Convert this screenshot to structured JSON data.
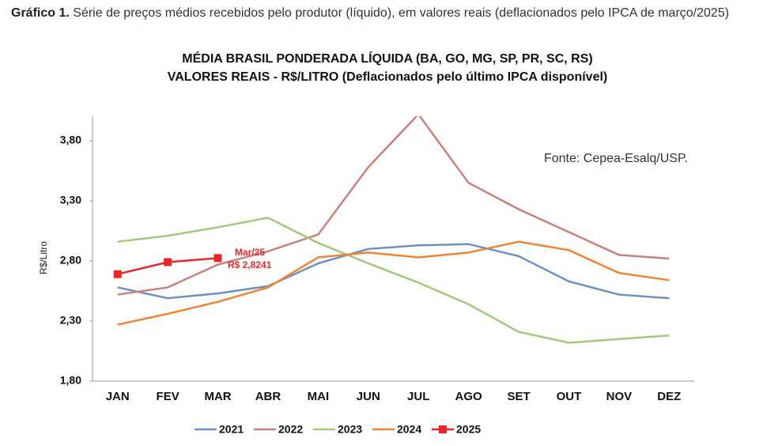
{
  "caption": {
    "label": "Gráfico 1.",
    "text": "Série de preços médios recebidos pelo produtor (líquido), em valores reais (deflacionados pelo IPCA de março/2025)"
  },
  "chart_data": {
    "type": "line",
    "title": "MÉDIA BRASIL PONDERADA LÍQUIDA (BA, GO, MG, SP, PR, SC, RS)",
    "subtitle": "VALORES REAIS - R$/LITRO (Deflacionados pelo último IPCA disponível)",
    "ylabel": "R$/Litro",
    "source": "Fonte: Cepea-Esalq/USP.",
    "annotation": [
      "Mar/25",
      "R$ 2,8241"
    ],
    "categories": [
      "JAN",
      "FEV",
      "MAR",
      "ABR",
      "MAI",
      "JUN",
      "JUL",
      "AGO",
      "SET",
      "OUT",
      "NOV",
      "DEZ"
    ],
    "ylim": [
      1.8,
      4.0
    ],
    "yticks": [
      {
        "value": 1.8,
        "label": "1,80"
      },
      {
        "value": 2.3,
        "label": "2,30"
      },
      {
        "value": 2.8,
        "label": "2,80"
      },
      {
        "value": 3.3,
        "label": "3,30"
      },
      {
        "value": 3.8,
        "label": "3,80"
      }
    ],
    "series": [
      {
        "name": "2021",
        "color": "#6f8fc1",
        "values": [
          2.58,
          2.49,
          2.53,
          2.59,
          2.78,
          2.9,
          2.93,
          2.94,
          2.84,
          2.63,
          2.52,
          2.49
        ]
      },
      {
        "name": "2022",
        "color": "#c9817e",
        "values": [
          2.52,
          2.58,
          2.77,
          2.88,
          3.02,
          3.58,
          4.02,
          3.45,
          3.23,
          3.04,
          2.85,
          2.82
        ]
      },
      {
        "name": "2023",
        "color": "#a5c77c",
        "values": [
          2.96,
          3.01,
          3.08,
          3.16,
          2.95,
          2.78,
          2.62,
          2.44,
          2.21,
          2.12,
          2.15,
          2.18
        ]
      },
      {
        "name": "2024",
        "color": "#ee8434",
        "values": [
          2.27,
          2.36,
          2.46,
          2.58,
          2.83,
          2.87,
          2.83,
          2.87,
          2.96,
          2.89,
          2.7,
          2.64
        ]
      },
      {
        "name": "2025",
        "color": "#e8262a",
        "values": [
          2.69,
          2.79,
          2.8241,
          null,
          null,
          null,
          null,
          null,
          null,
          null,
          null,
          null
        ],
        "marker": "square"
      }
    ]
  }
}
